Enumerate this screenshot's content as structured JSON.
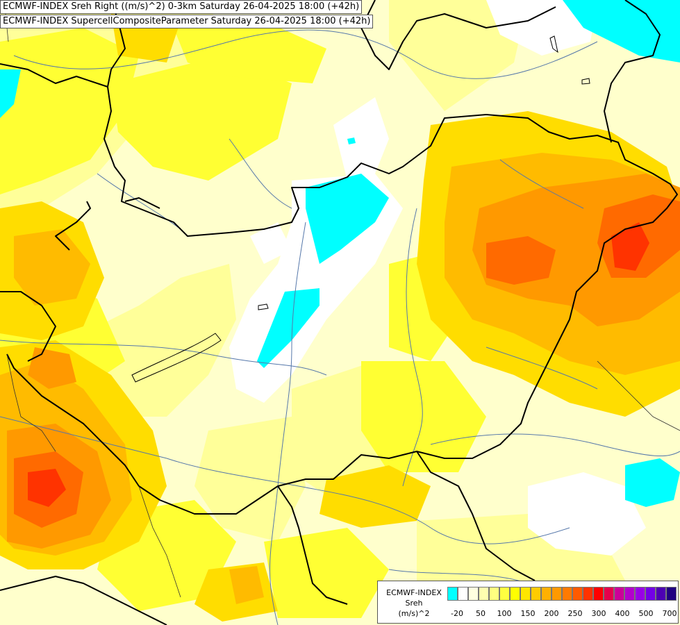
{
  "header": {
    "line1": "ECMWF-INDEX Sreh Right ((m/s)^2) 0-3km Saturday 26-04-2025 18:00 (+42h)",
    "line2": "ECMWF-INDEX SupercellCompositeParameter Saturday 26-04-2025 18:00 (+42h)"
  },
  "legend": {
    "model": "ECMWF-INDEX",
    "variable": "Sreh",
    "unit": "(m/s)^2",
    "colors": [
      "#00ffff",
      "#ffffff",
      "#ffffe0",
      "#ffffb0",
      "#ffff80",
      "#ffff40",
      "#ffff00",
      "#ffe600",
      "#ffcc00",
      "#ffb000",
      "#ff9900",
      "#ff7a00",
      "#ff5a00",
      "#ff3300",
      "#ff0000",
      "#e6004c",
      "#cc0099",
      "#b300cc",
      "#9900e6",
      "#7300e6",
      "#4d00b3",
      "#200080"
    ],
    "tick_labels": [
      "-20",
      "50",
      "100",
      "150",
      "200",
      "250",
      "300",
      "400",
      "500",
      "700"
    ]
  },
  "map_colors": {
    "background": "#ffffcc",
    "light_yellow": "#ffff99",
    "yellow": "#ffff33",
    "gold": "#ffdd00",
    "light_orange": "#ffbb00",
    "orange": "#ff9900",
    "dark_orange": "#ff6a00",
    "red_orange": "#ff3300",
    "cyan": "#00ffff",
    "white": "#ffffff",
    "border": "#000000",
    "river": "#5577aa"
  }
}
